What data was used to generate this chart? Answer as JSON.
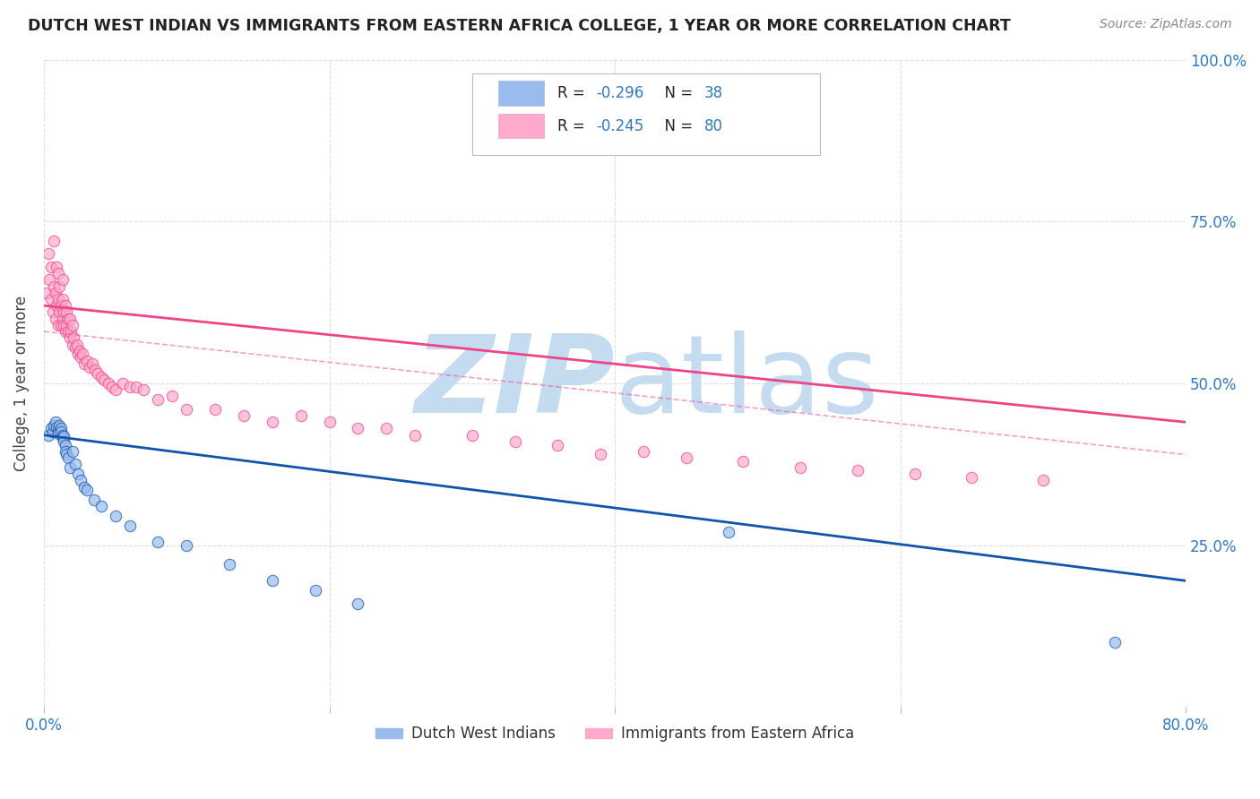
{
  "title": "DUTCH WEST INDIAN VS IMMIGRANTS FROM EASTERN AFRICA COLLEGE, 1 YEAR OR MORE CORRELATION CHART",
  "source": "Source: ZipAtlas.com",
  "ylabel": "College, 1 year or more",
  "xlim": [
    0.0,
    0.8
  ],
  "ylim": [
    0.0,
    1.0
  ],
  "xticks": [
    0.0,
    0.2,
    0.4,
    0.6,
    0.8
  ],
  "xtick_labels": [
    "0.0%",
    "",
    "",
    "",
    "80.0%"
  ],
  "yticks": [
    0.0,
    0.25,
    0.5,
    0.75,
    1.0
  ],
  "ytick_labels_right": [
    "",
    "25.0%",
    "50.0%",
    "75.0%",
    "100.0%"
  ],
  "legend_r1": "-0.296",
  "legend_n1": "38",
  "legend_r2": "-0.245",
  "legend_n2": "80",
  "blue_color": "#99BBEE",
  "pink_color": "#FFAACC",
  "line_blue": "#1155AA",
  "line_pink": "#EE4488",
  "label_color": "#3377BB",
  "watermark_color": "#C5DCF0",
  "blue_scatter_x": [
    0.003,
    0.005,
    0.006,
    0.007,
    0.008,
    0.009,
    0.01,
    0.01,
    0.011,
    0.012,
    0.012,
    0.013,
    0.013,
    0.014,
    0.014,
    0.015,
    0.015,
    0.016,
    0.017,
    0.018,
    0.02,
    0.022,
    0.024,
    0.026,
    0.028,
    0.03,
    0.035,
    0.04,
    0.05,
    0.06,
    0.08,
    0.1,
    0.13,
    0.16,
    0.19,
    0.22,
    0.48,
    0.75
  ],
  "blue_scatter_y": [
    0.42,
    0.43,
    0.425,
    0.435,
    0.44,
    0.432,
    0.428,
    0.422,
    0.435,
    0.43,
    0.425,
    0.42,
    0.415,
    0.418,
    0.41,
    0.405,
    0.395,
    0.39,
    0.385,
    0.37,
    0.395,
    0.375,
    0.36,
    0.35,
    0.34,
    0.335,
    0.32,
    0.31,
    0.295,
    0.28,
    0.255,
    0.25,
    0.22,
    0.195,
    0.18,
    0.16,
    0.27,
    0.1
  ],
  "pink_scatter_x": [
    0.002,
    0.003,
    0.004,
    0.005,
    0.005,
    0.006,
    0.007,
    0.007,
    0.008,
    0.008,
    0.009,
    0.009,
    0.01,
    0.01,
    0.01,
    0.011,
    0.011,
    0.012,
    0.012,
    0.013,
    0.013,
    0.013,
    0.014,
    0.014,
    0.015,
    0.015,
    0.016,
    0.016,
    0.017,
    0.017,
    0.018,
    0.018,
    0.019,
    0.02,
    0.02,
    0.021,
    0.022,
    0.023,
    0.024,
    0.025,
    0.026,
    0.027,
    0.028,
    0.03,
    0.032,
    0.034,
    0.036,
    0.038,
    0.04,
    0.042,
    0.045,
    0.048,
    0.05,
    0.055,
    0.06,
    0.065,
    0.07,
    0.08,
    0.09,
    0.1,
    0.12,
    0.14,
    0.16,
    0.18,
    0.2,
    0.22,
    0.24,
    0.26,
    0.3,
    0.33,
    0.36,
    0.39,
    0.42,
    0.45,
    0.49,
    0.53,
    0.57,
    0.61,
    0.65,
    0.7
  ],
  "pink_scatter_y": [
    0.64,
    0.7,
    0.66,
    0.63,
    0.68,
    0.61,
    0.65,
    0.72,
    0.6,
    0.64,
    0.62,
    0.68,
    0.59,
    0.63,
    0.67,
    0.61,
    0.65,
    0.59,
    0.62,
    0.6,
    0.63,
    0.66,
    0.59,
    0.61,
    0.58,
    0.62,
    0.59,
    0.61,
    0.58,
    0.6,
    0.57,
    0.6,
    0.58,
    0.56,
    0.59,
    0.57,
    0.555,
    0.56,
    0.545,
    0.55,
    0.54,
    0.545,
    0.53,
    0.535,
    0.525,
    0.53,
    0.52,
    0.515,
    0.51,
    0.505,
    0.5,
    0.495,
    0.49,
    0.5,
    0.495,
    0.495,
    0.49,
    0.475,
    0.48,
    0.46,
    0.46,
    0.45,
    0.44,
    0.45,
    0.44,
    0.43,
    0.43,
    0.42,
    0.42,
    0.41,
    0.405,
    0.39,
    0.395,
    0.385,
    0.38,
    0.37,
    0.365,
    0.36,
    0.355,
    0.35
  ],
  "figsize": [
    14.06,
    8.92
  ],
  "dpi": 100
}
